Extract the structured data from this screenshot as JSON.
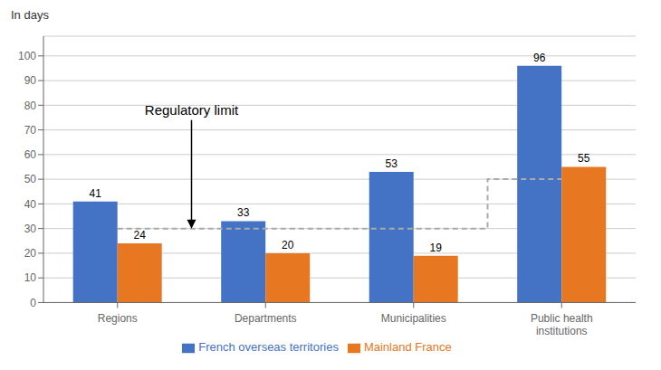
{
  "chart_data": {
    "type": "bar",
    "ylabel": "In days",
    "annotation": "Regulatory limit",
    "categories": [
      "Regions",
      "Departments",
      "Municipalities",
      "Public health\ninstitutions"
    ],
    "series": [
      {
        "name": "French overseas territories",
        "color": "#4472C4",
        "values": [
          41,
          33,
          53,
          96
        ]
      },
      {
        "name": "Mainland France",
        "color": "#E87722",
        "values": [
          24,
          20,
          19,
          55
        ]
      }
    ],
    "limit": {
      "values": [
        30,
        30,
        30,
        50
      ],
      "color": "#AAAAAA",
      "line_style": "dashed"
    },
    "ylim": [
      0,
      108
    ],
    "yticks": [
      0,
      10,
      20,
      30,
      40,
      50,
      60,
      70,
      80,
      90,
      100
    ],
    "grid": true,
    "legend": "bottom",
    "data_labels": true
  }
}
